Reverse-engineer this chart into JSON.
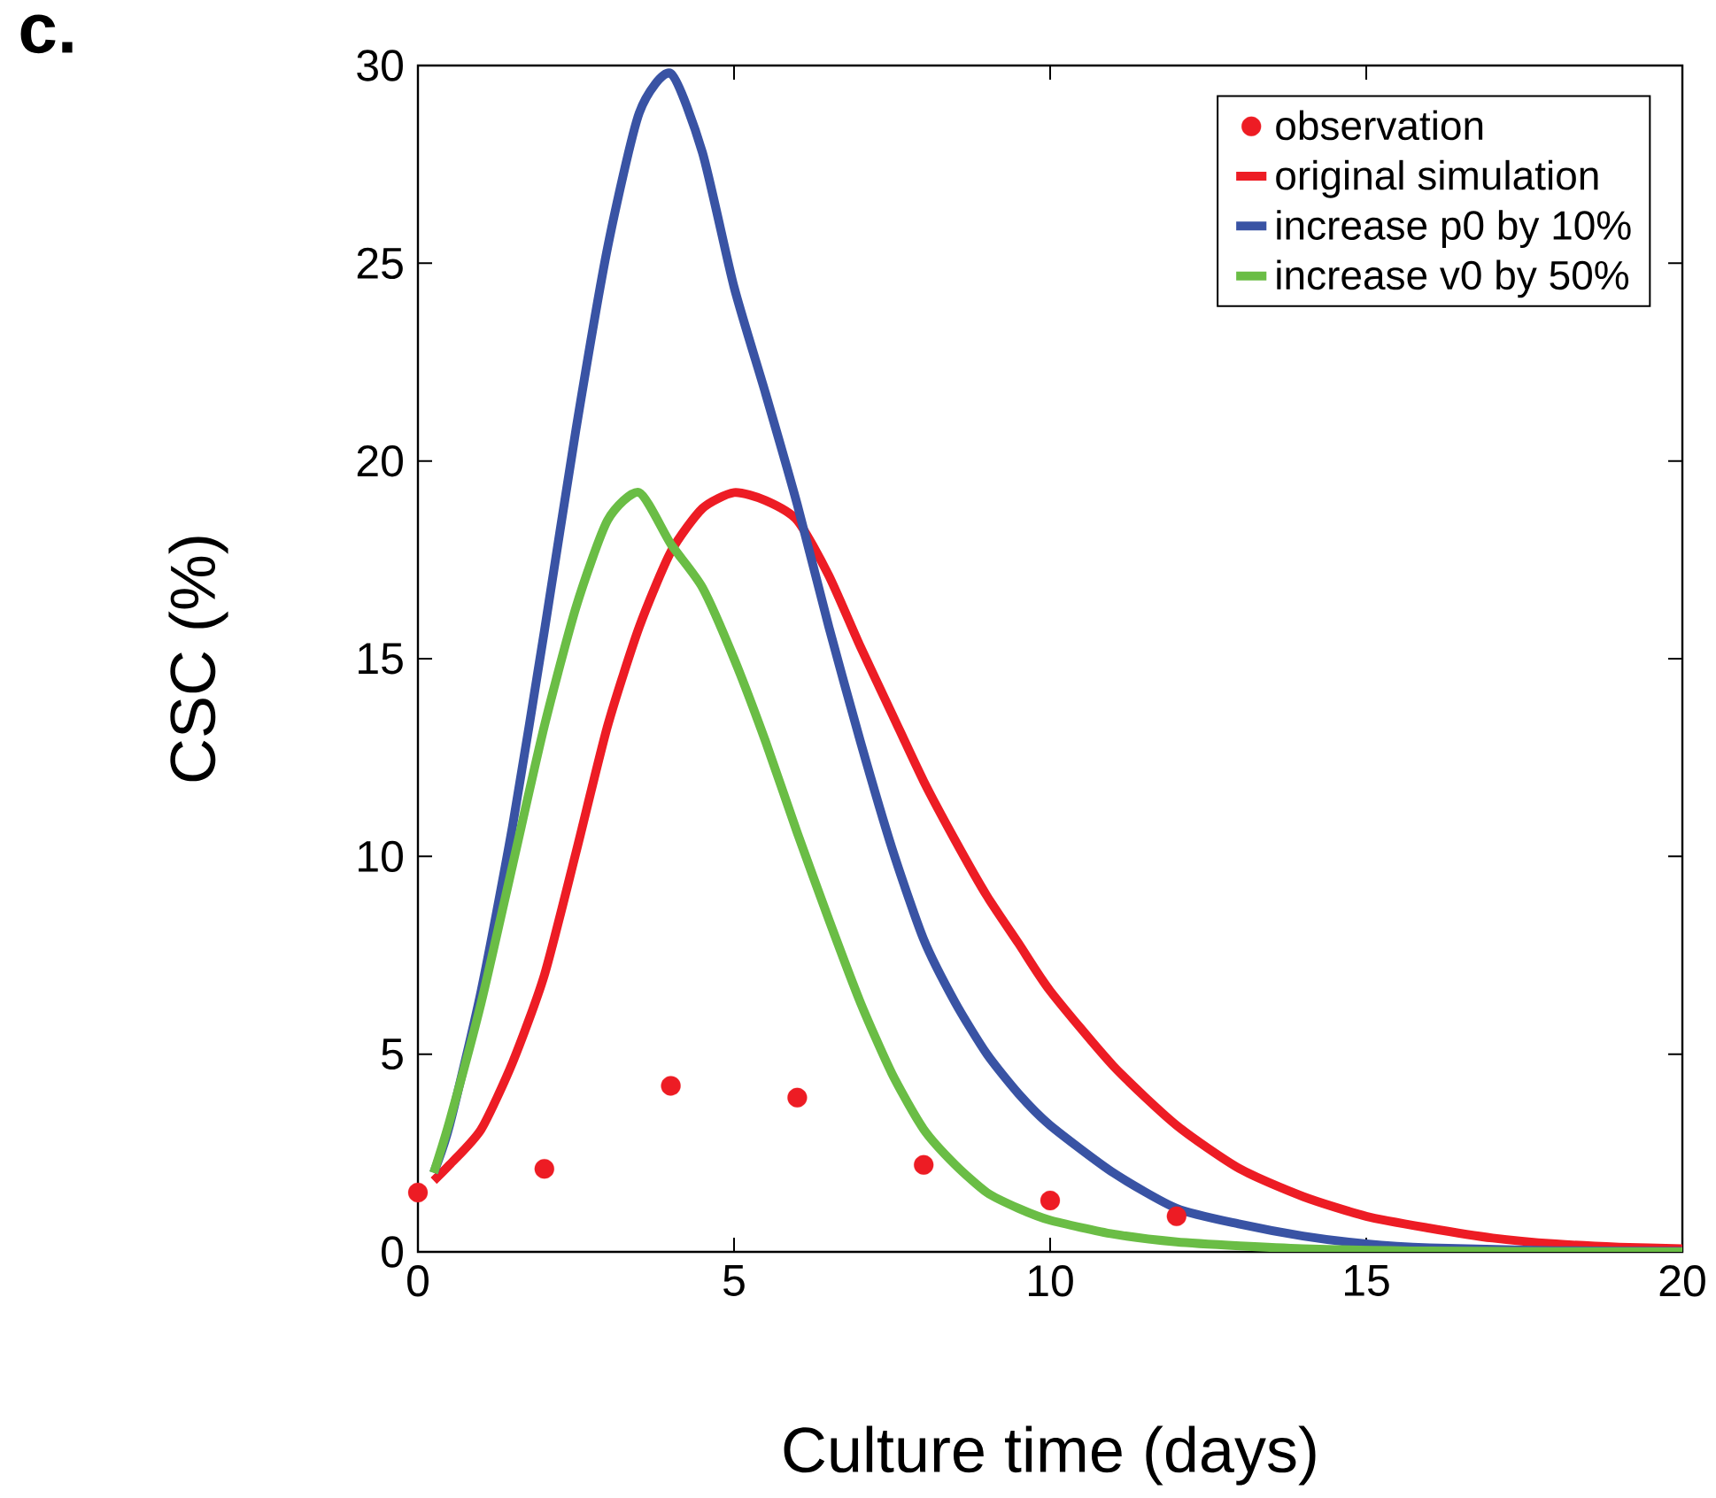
{
  "chart_data": {
    "type": "line",
    "xlabel": "Culture time (days)",
    "ylabel": "CSC (%)",
    "annotations": [
      "c."
    ],
    "xlim": [
      0,
      20
    ],
    "ylim": [
      0,
      30
    ],
    "xticks": [
      0,
      5,
      10,
      15,
      20
    ],
    "yticks": [
      0,
      5,
      10,
      15,
      20,
      25,
      30
    ],
    "legend": "top right",
    "line_style": "solid",
    "series": [
      {
        "name": "observation",
        "type": "scatter",
        "color": "#ed1c24",
        "x": [
          0,
          2,
          4,
          6,
          8,
          10,
          12
        ],
        "values": [
          1.5,
          2.1,
          4.2,
          3.9,
          2.2,
          1.3,
          0.9
        ]
      },
      {
        "name": "original simulation",
        "color": "#ed1c24",
        "x": [
          0.25,
          0.5,
          1,
          1.5,
          2,
          2.5,
          3,
          3.5,
          4,
          4.5,
          5,
          5.5,
          6,
          6.5,
          7,
          7.5,
          8,
          8.5,
          9,
          9.5,
          10,
          11,
          12,
          13,
          14,
          15,
          16,
          17,
          18,
          19,
          20
        ],
        "values": [
          1.8,
          2.2,
          3.1,
          4.8,
          7.0,
          10.1,
          13.3,
          15.8,
          17.7,
          18.8,
          19.2,
          19.0,
          18.5,
          17.1,
          15.3,
          13.6,
          11.9,
          10.4,
          9.0,
          7.8,
          6.6,
          4.7,
          3.2,
          2.1,
          1.4,
          0.9,
          0.6,
          0.35,
          0.2,
          0.12,
          0.08
        ]
      },
      {
        "name": "increase p0 by 10%",
        "color": "#3953a4",
        "x": [
          0.25,
          0.5,
          1,
          1.5,
          2,
          2.5,
          3,
          3.5,
          4,
          4.5,
          5,
          5.5,
          6,
          6.5,
          7,
          7.5,
          8,
          8.5,
          9,
          9.5,
          10,
          11,
          12,
          13,
          14,
          15,
          16,
          18,
          20
        ],
        "values": [
          2,
          3.2,
          6.6,
          10.8,
          15.7,
          20.8,
          25.4,
          28.8,
          29.8,
          27.8,
          24.4,
          21.7,
          18.9,
          15.8,
          12.9,
          10.2,
          7.9,
          6.3,
          5.0,
          4.0,
          3.2,
          2.0,
          1.1,
          0.7,
          0.4,
          0.2,
          0.1,
          0.03,
          0.01
        ]
      },
      {
        "name": "increase v0 by 50%",
        "color": "#6abd45",
        "x": [
          0.25,
          0.5,
          1,
          1.5,
          2,
          2.5,
          3,
          3.5,
          4,
          4.5,
          5,
          5.5,
          6,
          6.5,
          7,
          7.5,
          8,
          8.5,
          9,
          9.5,
          10,
          11,
          12,
          13,
          14,
          16,
          20
        ],
        "values": [
          2,
          3.3,
          6.3,
          9.8,
          13.3,
          16.3,
          18.5,
          19.2,
          17.9,
          16.8,
          15.0,
          12.9,
          10.6,
          8.4,
          6.3,
          4.5,
          3.1,
          2.2,
          1.5,
          1.1,
          0.8,
          0.45,
          0.25,
          0.15,
          0.08,
          0.02,
          0
        ]
      }
    ]
  }
}
